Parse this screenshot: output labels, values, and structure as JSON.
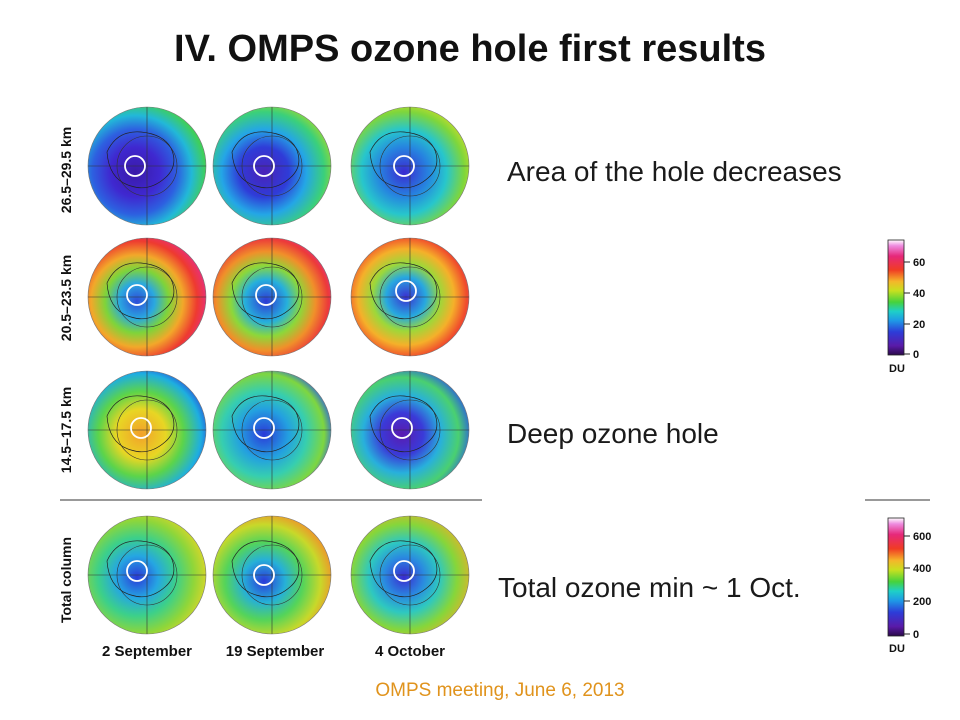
{
  "slide": {
    "title": "IV. OMPS ozone hole first results",
    "footer": "OMPS meeting, June 6,  2013"
  },
  "figure": {
    "row_labels": [
      "26.5–29.5 km",
      "20.5–23.5 km",
      "14.5–17.5 km",
      "Total column"
    ],
    "column_labels": [
      "2 September",
      "19 September",
      "4 October"
    ],
    "colorbar_upper": {
      "unit": "DU",
      "ticks": [
        "60",
        "40",
        "20",
        "0"
      ]
    },
    "colorbar_lower": {
      "unit": "DU",
      "ticks": [
        "600",
        "400",
        "200",
        "0"
      ]
    }
  },
  "captions": {
    "area_decreases": "Area of the hole decreases",
    "deep_hole": "Deep ozone hole",
    "total_min": "Total ozone min ~ 1 Oct."
  },
  "colors": {
    "footer": "#e0931c",
    "colormap": [
      "#2a0a4a",
      "#5a1aa8",
      "#2d3cd8",
      "#1e9ae6",
      "#1ed0c8",
      "#46d23c",
      "#c8e020",
      "#f5b62a",
      "#f03c24",
      "#e6287a",
      "#ee8ce0",
      "#ffffff"
    ]
  }
}
